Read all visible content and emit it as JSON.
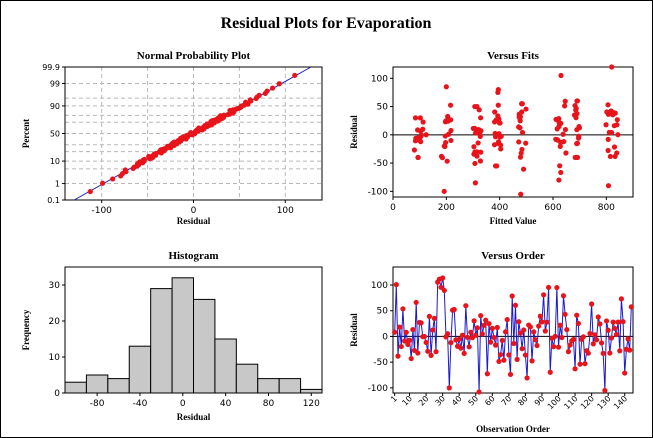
{
  "title": "Residual Plots for Evaporation",
  "colors": {
    "points": "#e8141b",
    "fit_line": "#1a1ad0",
    "order_line": "#1a1ad0",
    "bars": "#c8c8c8",
    "grid": "#b8b8b8"
  },
  "chart_data": [
    {
      "id": "normal",
      "type": "scatter",
      "title": "Normal Probability Plot",
      "xlabel": "Residual",
      "ylabel": "Percent",
      "xlim": [
        -140,
        140
      ],
      "x_ticks": [
        -100,
        0,
        100
      ],
      "y_ticks": [
        "0.1",
        "1",
        "10",
        "50",
        "90",
        "99",
        "99.9"
      ],
      "y_percent_ticks": [
        0.1,
        1,
        10,
        50,
        90,
        99,
        99.9
      ],
      "grid": true,
      "fit_line": {
        "from": [
          -130,
          0.1
        ],
        "to": [
          128,
          99.9
        ]
      }
    },
    {
      "id": "fits",
      "type": "scatter",
      "title": "Versus Fits",
      "xlabel": "Fitted Value",
      "ylabel": "Residual",
      "xlim": [
        0,
        900
      ],
      "ylim": [
        -110,
        120
      ],
      "x_ticks": [
        0,
        200,
        400,
        600,
        800
      ],
      "y_ticks": [
        -100,
        -50,
        0,
        50,
        100
      ],
      "reference_line": 0,
      "clusters": [
        {
          "x": [
            80,
            125
          ],
          "y": [
            -40,
            30
          ]
        },
        {
          "x": [
            180,
            220
          ],
          "y": [
            -100,
            85
          ]
        },
        {
          "x": [
            300,
            330
          ],
          "y": [
            -85,
            50
          ]
        },
        {
          "x": [
            380,
            410
          ],
          "y": [
            -55,
            80
          ]
        },
        {
          "x": [
            470,
            500
          ],
          "y": [
            -105,
            55
          ]
        },
        {
          "x": [
            610,
            650
          ],
          "y": [
            -80,
            105
          ]
        },
        {
          "x": [
            680,
            700
          ],
          "y": [
            -40,
            60
          ]
        },
        {
          "x": [
            790,
            850
          ],
          "y": [
            -90,
            120
          ]
        }
      ]
    },
    {
      "id": "hist",
      "type": "bar",
      "title": "Histogram",
      "xlabel": "Residual",
      "ylabel": "Frequency",
      "bin_start": -110,
      "bin_width": 20,
      "values": [
        3,
        5,
        4,
        13,
        29,
        32,
        26,
        15,
        8,
        4,
        4,
        1
      ],
      "xlim": [
        -110,
        130
      ],
      "ylim": [
        0,
        35
      ],
      "x_ticks": [
        -80,
        -40,
        0,
        40,
        80,
        120
      ],
      "y_ticks": [
        0,
        10,
        20,
        30
      ]
    },
    {
      "id": "order",
      "type": "line",
      "title": "Versus Order",
      "xlabel": "Observation Order",
      "ylabel": "Residual",
      "xlim": [
        0,
        145
      ],
      "ylim": [
        -110,
        135
      ],
      "x_ticks": [
        1,
        10,
        20,
        30,
        40,
        50,
        60,
        70,
        80,
        90,
        100,
        110,
        120,
        130,
        140
      ],
      "y_ticks": [
        -100,
        -50,
        0,
        50,
        100
      ],
      "reference_line": 0
    }
  ]
}
